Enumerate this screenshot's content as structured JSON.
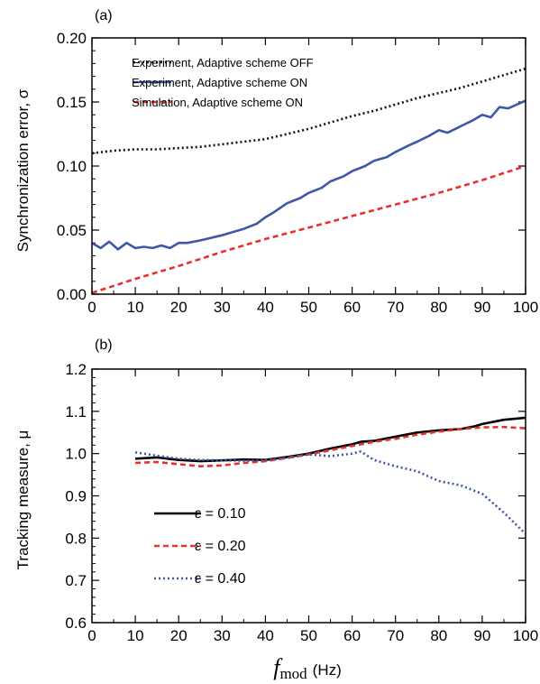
{
  "chart_data": [
    {
      "type": "line",
      "panel_label": "(a)",
      "ylabel": "Synchronization error, σ",
      "xlim": [
        0,
        100
      ],
      "ylim": [
        0,
        0.2
      ],
      "xticks": [
        "0",
        "10",
        "20",
        "30",
        "40",
        "50",
        "60",
        "70",
        "80",
        "90",
        "100"
      ],
      "yticks": [
        "0.00",
        "0.05",
        "0.10",
        "0.15",
        "0.20"
      ],
      "legend_position": "top-left",
      "series": [
        {
          "name": "Experiment, Adaptive scheme OFF",
          "color": "#111111",
          "style": "dotted",
          "x": [
            0,
            5,
            10,
            15,
            20,
            25,
            30,
            35,
            40,
            45,
            50,
            55,
            60,
            65,
            70,
            75,
            80,
            85,
            90,
            95,
            100
          ],
          "y": [
            0.11,
            0.112,
            0.113,
            0.113,
            0.114,
            0.115,
            0.117,
            0.119,
            0.121,
            0.125,
            0.129,
            0.134,
            0.139,
            0.143,
            0.148,
            0.153,
            0.157,
            0.161,
            0.166,
            0.171,
            0.176
          ]
        },
        {
          "name": "Experiment, Adaptive scheme ON",
          "color": "#3f57a6",
          "style": "solid",
          "x": [
            0,
            2,
            4,
            6,
            8,
            10,
            12,
            14,
            16,
            18,
            20,
            22,
            25,
            30,
            35,
            38,
            40,
            42,
            45,
            48,
            50,
            53,
            55,
            58,
            60,
            63,
            65,
            68,
            70,
            73,
            75,
            78,
            80,
            82,
            85,
            88,
            90,
            92,
            94,
            96,
            98,
            100
          ],
          "y": [
            0.04,
            0.036,
            0.041,
            0.035,
            0.04,
            0.036,
            0.037,
            0.036,
            0.038,
            0.036,
            0.04,
            0.04,
            0.042,
            0.046,
            0.051,
            0.055,
            0.06,
            0.064,
            0.071,
            0.075,
            0.079,
            0.083,
            0.088,
            0.092,
            0.096,
            0.1,
            0.104,
            0.107,
            0.111,
            0.116,
            0.119,
            0.124,
            0.128,
            0.126,
            0.131,
            0.136,
            0.14,
            0.138,
            0.146,
            0.145,
            0.148,
            0.151
          ]
        },
        {
          "name": "Simulation, Adaptive scheme ON",
          "color": "#e8312f",
          "style": "dashed",
          "x": [
            0,
            10,
            20,
            30,
            40,
            50,
            60,
            70,
            80,
            90,
            100
          ],
          "y": [
            0.001,
            0.012,
            0.022,
            0.033,
            0.043,
            0.052,
            0.061,
            0.07,
            0.079,
            0.089,
            0.1
          ]
        }
      ]
    },
    {
      "type": "line",
      "panel_label": "(b)",
      "ylabel": "Tracking measure, μ",
      "xlim": [
        0,
        100
      ],
      "ylim": [
        0.6,
        1.2
      ],
      "xticks": [
        "0",
        "10",
        "20",
        "30",
        "40",
        "50",
        "60",
        "70",
        "80",
        "90",
        "100"
      ],
      "yticks": [
        "0.6",
        "0.7",
        "0.8",
        "0.9",
        "1.0",
        "1.1",
        "1.2"
      ],
      "xlabel_symbol": "f",
      "xlabel_subscript": "mod",
      "xlabel_unit": "(Hz)",
      "legend_position": "lower-left",
      "series": [
        {
          "name": "ε = 0.10",
          "color": "#000000",
          "style": "solid",
          "x": [
            10,
            15,
            20,
            25,
            30,
            35,
            40,
            45,
            50,
            55,
            60,
            62,
            65,
            70,
            75,
            80,
            85,
            88,
            90,
            95,
            100
          ],
          "y": [
            0.988,
            0.991,
            0.985,
            0.982,
            0.984,
            0.986,
            0.985,
            0.992,
            1.0,
            1.012,
            1.022,
            1.028,
            1.03,
            1.04,
            1.05,
            1.055,
            1.058,
            1.064,
            1.07,
            1.08,
            1.085
          ]
        },
        {
          "name": "ε = 0.20",
          "color": "#e8312f",
          "style": "dashed",
          "x": [
            10,
            15,
            20,
            25,
            30,
            35,
            40,
            45,
            50,
            55,
            60,
            65,
            70,
            75,
            80,
            85,
            90,
            95,
            100
          ],
          "y": [
            0.978,
            0.98,
            0.975,
            0.97,
            0.972,
            0.978,
            0.982,
            0.99,
            0.998,
            1.008,
            1.018,
            1.028,
            1.035,
            1.045,
            1.052,
            1.058,
            1.062,
            1.063,
            1.06
          ]
        },
        {
          "name": "ε = 0.40",
          "color": "#3f57a6",
          "style": "dotted",
          "x": [
            10,
            15,
            20,
            25,
            30,
            35,
            40,
            45,
            50,
            55,
            60,
            62,
            65,
            70,
            75,
            80,
            85,
            90,
            95,
            98,
            100
          ],
          "y": [
            1.003,
            0.995,
            0.988,
            0.985,
            0.984,
            0.983,
            0.984,
            0.99,
            0.998,
            0.994,
            1.0,
            1.005,
            0.985,
            0.97,
            0.958,
            0.935,
            0.925,
            0.905,
            0.86,
            0.83,
            0.81
          ]
        }
      ]
    }
  ]
}
